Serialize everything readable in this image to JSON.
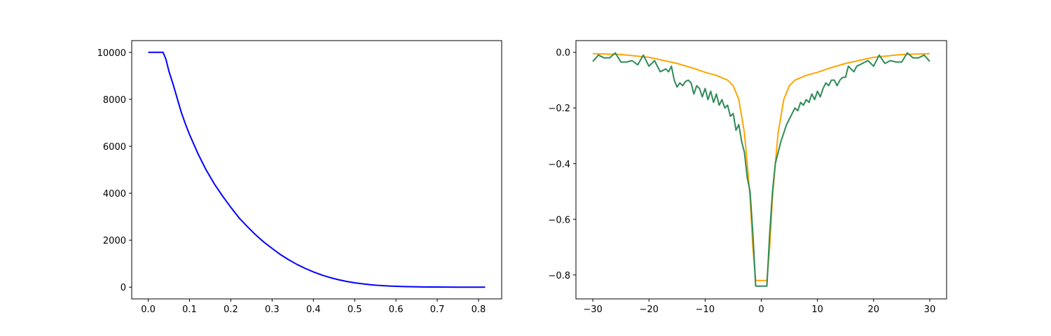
{
  "chart_data": [
    {
      "type": "line",
      "xlim": [
        -0.04,
        0.856
      ],
      "ylim": [
        -500,
        10500
      ],
      "x_ticks": [
        0.0,
        0.1,
        0.2,
        0.3,
        0.4,
        0.5,
        0.6,
        0.7,
        0.8
      ],
      "x_tick_labels": [
        "0.0",
        "0.1",
        "0.2",
        "0.3",
        "0.4",
        "0.5",
        "0.6",
        "0.7",
        "0.8"
      ],
      "y_ticks": [
        0,
        2000,
        4000,
        6000,
        8000,
        10000
      ],
      "y_tick_labels": [
        "0",
        "2000",
        "4000",
        "6000",
        "8000",
        "10000"
      ],
      "grid": false,
      "series": [
        {
          "color": "#0000ff",
          "x": [
            0.0,
            0.036,
            0.043,
            0.05,
            0.06,
            0.07,
            0.08,
            0.09,
            0.1,
            0.12,
            0.14,
            0.16,
            0.18,
            0.2,
            0.22,
            0.24,
            0.26,
            0.28,
            0.3,
            0.32,
            0.34,
            0.36,
            0.38,
            0.4,
            0.42,
            0.44,
            0.46,
            0.48,
            0.5,
            0.52,
            0.54,
            0.56,
            0.58,
            0.6,
            0.62,
            0.64,
            0.66,
            0.68,
            0.7,
            0.72,
            0.75,
            0.78,
            0.816
          ],
          "y": [
            10000,
            10000,
            9700,
            9200,
            8650,
            8050,
            7450,
            6950,
            6500,
            5700,
            5000,
            4400,
            3880,
            3400,
            2950,
            2580,
            2230,
            1920,
            1650,
            1390,
            1170,
            970,
            800,
            650,
            520,
            410,
            320,
            245,
            185,
            140,
            100,
            72,
            52,
            37,
            26,
            18,
            12,
            8,
            5,
            3,
            1,
            0,
            0
          ]
        }
      ]
    },
    {
      "type": "line",
      "xlim": [
        -33,
        33
      ],
      "ylim": [
        -0.886,
        0.042
      ],
      "x_ticks": [
        -30,
        -20,
        -10,
        0,
        10,
        20,
        30
      ],
      "x_tick_labels": [
        "−30",
        "−20",
        "−10",
        "0",
        "10",
        "20",
        "30"
      ],
      "y_ticks": [
        0.0,
        -0.2,
        -0.4,
        -0.6,
        -0.8
      ],
      "y_tick_labels": [
        "0.0",
        "−0.2",
        "−0.4",
        "−0.6",
        "−0.8"
      ],
      "grid": false,
      "series": [
        {
          "color": "#ffa500",
          "x": [
            -30,
            -25,
            -20,
            -15,
            -12,
            -10,
            -8,
            -6,
            -5,
            -4,
            -3,
            -2.5,
            -2,
            -1.5,
            -1,
            1,
            1.5,
            2,
            2.5,
            3,
            4,
            5,
            6,
            8,
            10,
            12,
            15,
            20,
            25,
            30
          ],
          "y": [
            -0.005,
            -0.008,
            -0.018,
            -0.04,
            -0.058,
            -0.072,
            -0.083,
            -0.1,
            -0.12,
            -0.17,
            -0.29,
            -0.4,
            -0.52,
            -0.7,
            -0.82,
            -0.82,
            -0.7,
            -0.52,
            -0.4,
            -0.29,
            -0.17,
            -0.12,
            -0.1,
            -0.083,
            -0.072,
            -0.058,
            -0.04,
            -0.018,
            -0.008,
            -0.005
          ]
        },
        {
          "color": "#2e8b57",
          "x": [
            -30,
            -29,
            -28,
            -27,
            -26,
            -25,
            -24,
            -23,
            -22,
            -21,
            -20,
            -19,
            -18,
            -17,
            -16.5,
            -16,
            -15.5,
            -15,
            -14.5,
            -14,
            -13.5,
            -13,
            -12.5,
            -12,
            -11.5,
            -11,
            -10.5,
            -10,
            -9.5,
            -9,
            -8.5,
            -8,
            -7.5,
            -7,
            -6.5,
            -6,
            -5.5,
            -5,
            -4.5,
            -4,
            -3.5,
            -3,
            -2.5,
            -2,
            -1.5,
            -1,
            1,
            1.5,
            2,
            2.5,
            3,
            3.5,
            4,
            4.5,
            5,
            5.5,
            6,
            6.5,
            7,
            7.5,
            8,
            8.5,
            9,
            9.5,
            10,
            10.5,
            11,
            11.5,
            12,
            12.5,
            13,
            13.5,
            14,
            14.5,
            15,
            15.5,
            16,
            16.5,
            17,
            18,
            19,
            20,
            21,
            22,
            23,
            24,
            25,
            26,
            27,
            28,
            29,
            30
          ],
          "y": [
            -0.033,
            -0.01,
            -0.02,
            -0.02,
            -0.002,
            -0.035,
            -0.035,
            -0.03,
            -0.045,
            -0.01,
            -0.05,
            -0.03,
            -0.07,
            -0.06,
            -0.07,
            -0.05,
            -0.1,
            -0.125,
            -0.11,
            -0.12,
            -0.105,
            -0.1,
            -0.11,
            -0.15,
            -0.12,
            -0.13,
            -0.16,
            -0.13,
            -0.17,
            -0.14,
            -0.18,
            -0.15,
            -0.19,
            -0.17,
            -0.2,
            -0.19,
            -0.23,
            -0.22,
            -0.28,
            -0.26,
            -0.32,
            -0.36,
            -0.45,
            -0.5,
            -0.65,
            -0.84,
            -0.84,
            -0.65,
            -0.5,
            -0.4,
            -0.36,
            -0.32,
            -0.29,
            -0.26,
            -0.24,
            -0.22,
            -0.2,
            -0.21,
            -0.18,
            -0.19,
            -0.17,
            -0.18,
            -0.15,
            -0.17,
            -0.14,
            -0.16,
            -0.13,
            -0.11,
            -0.12,
            -0.1,
            -0.1,
            -0.12,
            -0.1,
            -0.09,
            -0.09,
            -0.05,
            -0.06,
            -0.07,
            -0.05,
            -0.04,
            -0.03,
            -0.05,
            -0.01,
            -0.04,
            -0.03,
            -0.035,
            -0.035,
            -0.002,
            -0.02,
            -0.02,
            -0.01,
            -0.033
          ]
        }
      ]
    }
  ]
}
